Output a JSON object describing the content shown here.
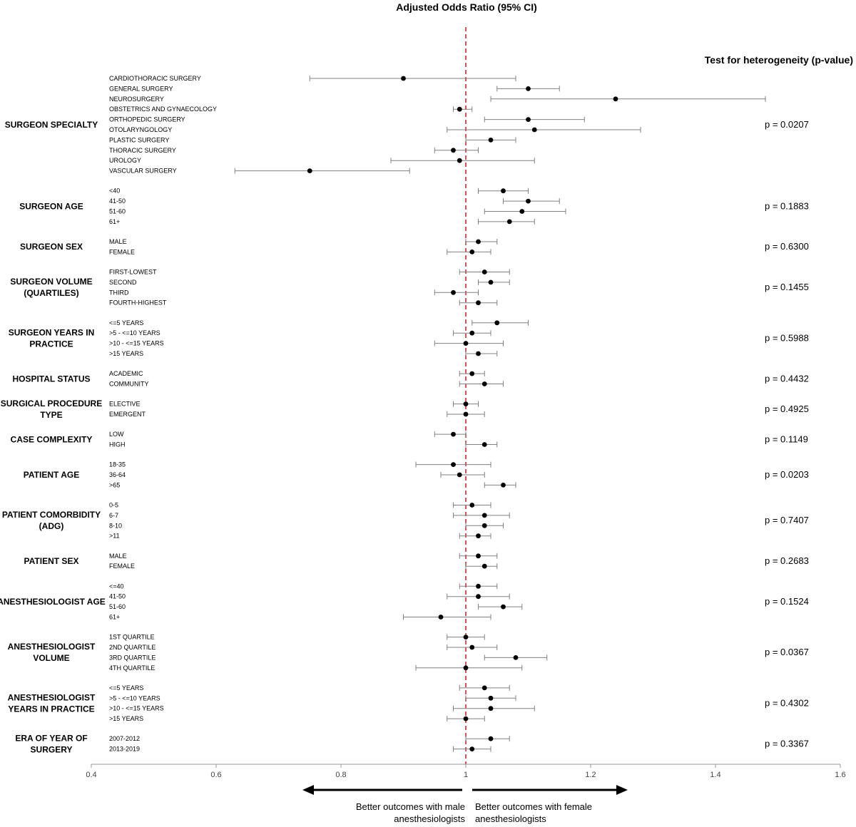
{
  "chart_data": {
    "type": "forest",
    "title": "Adjusted Odds Ratio (95% CI)",
    "heterogeneity_header": "Test for heterogeneity (p-value)",
    "xlim": [
      0.4,
      1.6
    ],
    "x_ticks": [
      "0.4",
      "0.6",
      "0.8",
      "1",
      "1.2",
      "1.4",
      "1.6"
    ],
    "reference_line": 1.0,
    "reference_color": "#d62728",
    "point_color": "#000000",
    "ci_color": "#808080",
    "arrow_left_label": [
      "Better outcomes with male",
      "anesthesiologists"
    ],
    "arrow_right_label": [
      "Better outcomes with female",
      "anesthesiologists"
    ],
    "groups": [
      {
        "label": [
          "SURGEON SPECIALTY"
        ],
        "p": "p = 0.0207",
        "items": [
          {
            "label": "CARDIOTHORACIC SURGERY",
            "or": 0.9,
            "lo": 0.75,
            "hi": 1.08
          },
          {
            "label": "GENERAL SURGERY",
            "or": 1.1,
            "lo": 1.05,
            "hi": 1.15
          },
          {
            "label": "NEUROSURGERY",
            "or": 1.24,
            "lo": 1.04,
            "hi": 1.48
          },
          {
            "label": "OBSTETRICS AND GYNAECOLOGY",
            "or": 0.99,
            "lo": 0.98,
            "hi": 1.01
          },
          {
            "label": "ORTHOPEDIC SURGERY",
            "or": 1.1,
            "lo": 1.03,
            "hi": 1.19
          },
          {
            "label": "OTOLARYNGOLOGY",
            "or": 1.11,
            "lo": 0.97,
            "hi": 1.28
          },
          {
            "label": "PLASTIC SURGERY",
            "or": 1.04,
            "lo": 1.0,
            "hi": 1.08
          },
          {
            "label": "THORACIC SURGERY",
            "or": 0.98,
            "lo": 0.95,
            "hi": 1.02
          },
          {
            "label": "UROLOGY",
            "or": 0.99,
            "lo": 0.88,
            "hi": 1.11
          },
          {
            "label": "VASCULAR SURGERY",
            "or": 0.75,
            "lo": 0.63,
            "hi": 0.91
          }
        ]
      },
      {
        "label": [
          "SURGEON AGE"
        ],
        "p": "p = 0.1883",
        "items": [
          {
            "label": "<40",
            "or": 1.06,
            "lo": 1.02,
            "hi": 1.1
          },
          {
            "label": "41-50",
            "or": 1.1,
            "lo": 1.06,
            "hi": 1.15
          },
          {
            "label": "51-60",
            "or": 1.09,
            "lo": 1.03,
            "hi": 1.16
          },
          {
            "label": "61+",
            "or": 1.07,
            "lo": 1.02,
            "hi": 1.11
          }
        ]
      },
      {
        "label": [
          "SURGEON SEX"
        ],
        "p": "p = 0.6300",
        "items": [
          {
            "label": "MALE",
            "or": 1.02,
            "lo": 1.0,
            "hi": 1.05
          },
          {
            "label": "FEMALE",
            "or": 1.01,
            "lo": 0.97,
            "hi": 1.04
          }
        ]
      },
      {
        "label": [
          "SURGEON VOLUME",
          "(QUARTILES)"
        ],
        "p": "p = 0.1455",
        "items": [
          {
            "label": "FIRST-LOWEST",
            "or": 1.03,
            "lo": 0.99,
            "hi": 1.07
          },
          {
            "label": "SECOND",
            "or": 1.04,
            "lo": 1.02,
            "hi": 1.07
          },
          {
            "label": "THIRD",
            "or": 0.98,
            "lo": 0.95,
            "hi": 1.02
          },
          {
            "label": "FOURTH-HIGHEST",
            "or": 1.02,
            "lo": 0.99,
            "hi": 1.05
          }
        ]
      },
      {
        "label": [
          "SURGEON YEARS IN",
          "PRACTICE"
        ],
        "p": "p = 0.5988",
        "items": [
          {
            "label": "<=5 YEARS",
            "or": 1.05,
            "lo": 1.01,
            "hi": 1.1
          },
          {
            "label": ">5 - <=10 YEARS",
            "or": 1.01,
            "lo": 0.98,
            "hi": 1.04
          },
          {
            "label": ">10 - <=15 YEARS",
            "or": 1.0,
            "lo": 0.95,
            "hi": 1.06
          },
          {
            "label": ">15 YEARS",
            "or": 1.02,
            "lo": 1.0,
            "hi": 1.05
          }
        ]
      },
      {
        "label": [
          "HOSPITAL STATUS"
        ],
        "p": "p = 0.4432",
        "items": [
          {
            "label": "ACADEMIC",
            "or": 1.01,
            "lo": 0.99,
            "hi": 1.03
          },
          {
            "label": "COMMUNITY",
            "or": 1.03,
            "lo": 0.99,
            "hi": 1.06
          }
        ]
      },
      {
        "label": [
          "SURGICAL PROCEDURE",
          "TYPE"
        ],
        "p": "p = 0.4925",
        "items": [
          {
            "label": "ELECTIVE",
            "or": 1.0,
            "lo": 0.98,
            "hi": 1.02
          },
          {
            "label": "EMERGENT",
            "or": 1.0,
            "lo": 0.97,
            "hi": 1.03
          }
        ]
      },
      {
        "label": [
          "CASE COMPLEXITY"
        ],
        "p": "p = 0.1149",
        "items": [
          {
            "label": "LOW",
            "or": 0.98,
            "lo": 0.95,
            "hi": 1.0
          },
          {
            "label": "HIGH",
            "or": 1.03,
            "lo": 1.0,
            "hi": 1.05
          }
        ]
      },
      {
        "label": [
          "PATIENT AGE"
        ],
        "p": "p = 0.0203",
        "items": [
          {
            "label": "18-35",
            "or": 0.98,
            "lo": 0.92,
            "hi": 1.04
          },
          {
            "label": "36-64",
            "or": 0.99,
            "lo": 0.96,
            "hi": 1.03
          },
          {
            "label": ">65",
            "or": 1.06,
            "lo": 1.03,
            "hi": 1.08
          }
        ]
      },
      {
        "label": [
          "PATIENT COMORBIDITY",
          "(ADG)"
        ],
        "p": "p = 0.7407",
        "items": [
          {
            "label": "0-5",
            "or": 1.01,
            "lo": 0.98,
            "hi": 1.04
          },
          {
            "label": "6-7",
            "or": 1.03,
            "lo": 0.98,
            "hi": 1.07
          },
          {
            "label": "8-10",
            "or": 1.03,
            "lo": 1.0,
            "hi": 1.06
          },
          {
            "label": ">11",
            "or": 1.02,
            "lo": 0.99,
            "hi": 1.04
          }
        ]
      },
      {
        "label": [
          "PATIENT SEX"
        ],
        "p": "p = 0.2683",
        "items": [
          {
            "label": "MALE",
            "or": 1.02,
            "lo": 0.99,
            "hi": 1.05
          },
          {
            "label": "FEMALE",
            "or": 1.03,
            "lo": 1.0,
            "hi": 1.05
          }
        ]
      },
      {
        "label": [
          "ANESTHESIOLOGIST AGE"
        ],
        "p": "p = 0.1524",
        "items": [
          {
            "label": "<=40",
            "or": 1.02,
            "lo": 0.99,
            "hi": 1.05
          },
          {
            "label": "41-50",
            "or": 1.02,
            "lo": 0.97,
            "hi": 1.07
          },
          {
            "label": "51-60",
            "or": 1.06,
            "lo": 1.02,
            "hi": 1.09
          },
          {
            "label": "61+",
            "or": 0.96,
            "lo": 0.9,
            "hi": 1.04
          }
        ]
      },
      {
        "label": [
          "ANESTHESIOLOGIST",
          "VOLUME"
        ],
        "p": "p = 0.0367",
        "items": [
          {
            "label": "1ST QUARTILE",
            "or": 1.0,
            "lo": 0.97,
            "hi": 1.03
          },
          {
            "label": "2ND QUARTILE",
            "or": 1.01,
            "lo": 0.97,
            "hi": 1.05
          },
          {
            "label": "3RD QUARTILE",
            "or": 1.08,
            "lo": 1.03,
            "hi": 1.13
          },
          {
            "label": "4TH QUARTILE",
            "or": 1.0,
            "lo": 0.92,
            "hi": 1.09
          }
        ]
      },
      {
        "label": [
          "ANESTHESIOLOGIST",
          "YEARS IN PRACTICE"
        ],
        "p": "p = 0.4302",
        "items": [
          {
            "label": "<=5 YEARS",
            "or": 1.03,
            "lo": 0.99,
            "hi": 1.07
          },
          {
            "label": ">5 - <=10 YEARS",
            "or": 1.04,
            "lo": 1.0,
            "hi": 1.08
          },
          {
            "label": ">10 - <=15 YEARS",
            "or": 1.04,
            "lo": 0.98,
            "hi": 1.11
          },
          {
            "label": ">15 YEARS",
            "or": 1.0,
            "lo": 0.97,
            "hi": 1.03
          }
        ]
      },
      {
        "label": [
          "ERA OF YEAR OF",
          "SURGERY"
        ],
        "p": "p = 0.3367",
        "items": [
          {
            "label": "2007-2012",
            "or": 1.04,
            "lo": 1.0,
            "hi": 1.07
          },
          {
            "label": "2013-2019",
            "or": 1.01,
            "lo": 0.98,
            "hi": 1.04
          }
        ]
      }
    ]
  }
}
